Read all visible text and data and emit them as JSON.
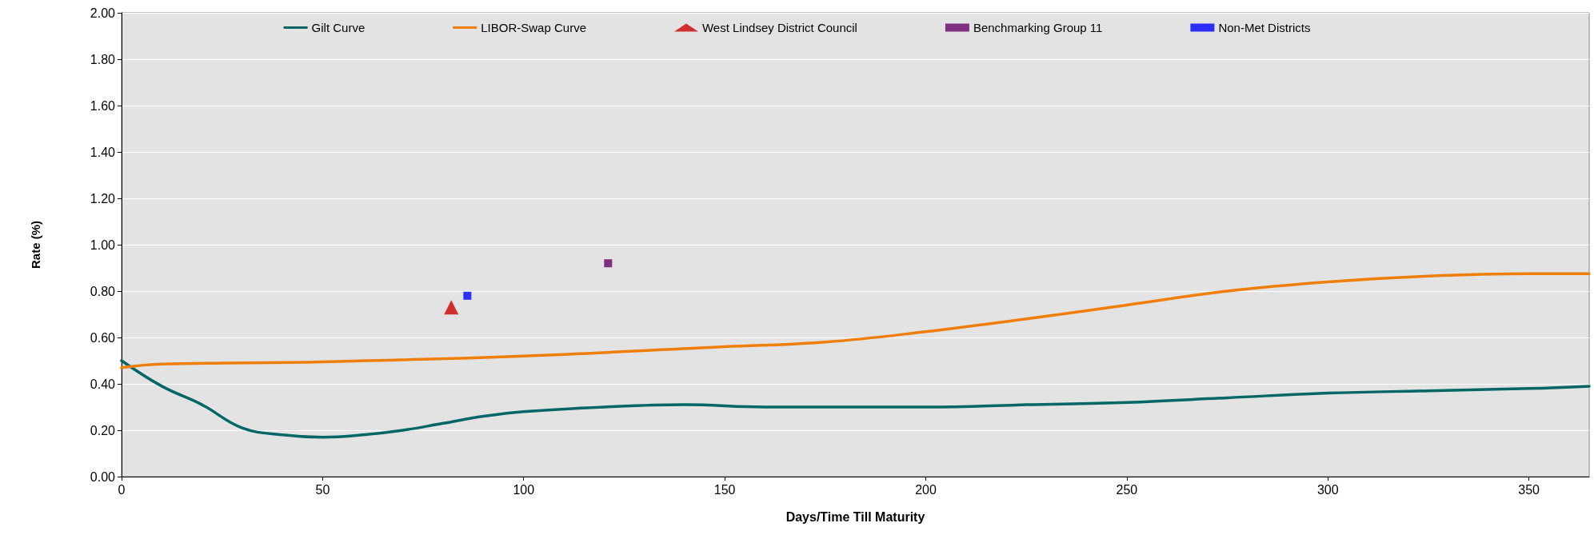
{
  "chart_data": {
    "type": "line",
    "xlabel": "Days/Time Till Maturity",
    "ylabel": "Rate (%)",
    "xlim": [
      0,
      365
    ],
    "xticks": [
      0,
      50,
      100,
      150,
      200,
      250,
      300,
      350
    ],
    "ylim": [
      0,
      2
    ],
    "yticks": [
      {
        "value": 0,
        "label": "0.00"
      },
      {
        "value": 0.2,
        "label": "0.20"
      },
      {
        "value": 0.4,
        "label": "0.40"
      },
      {
        "value": 0.6,
        "label": "0.60"
      },
      {
        "value": 0.8,
        "label": "0.80"
      },
      {
        "value": 1,
        "label": "1.00"
      },
      {
        "value": 1.2,
        "label": "1.20"
      },
      {
        "value": 1.4,
        "label": "1.40"
      },
      {
        "value": 1.6,
        "label": "1.60"
      },
      {
        "value": 1.8,
        "label": "1.80"
      },
      {
        "value": 2,
        "label": "2.00"
      }
    ],
    "grid": "y",
    "legend": "top",
    "series": [
      {
        "name": "Gilt Curve",
        "marker": "none",
        "color": "#006666",
        "x": [
          0,
          10,
          20,
          30,
          40,
          50,
          60,
          70,
          80,
          90,
          100,
          120,
          140,
          160,
          180,
          200,
          225,
          250,
          275,
          300,
          325,
          350,
          365
        ],
        "values": [
          0.5,
          0.39,
          0.31,
          0.21,
          0.18,
          0.17,
          0.18,
          0.2,
          0.23,
          0.26,
          0.28,
          0.3,
          0.31,
          0.3,
          0.3,
          0.3,
          0.31,
          0.32,
          0.34,
          0.36,
          0.37,
          0.38,
          0.39
        ]
      },
      {
        "name": "LIBOR-Swap Curve",
        "marker": "none",
        "color": "#f07f09",
        "x": [
          0,
          10,
          50,
          100,
          150,
          175,
          200,
          225,
          250,
          275,
          300,
          325,
          350,
          365
        ],
        "values": [
          0.47,
          0.485,
          0.495,
          0.52,
          0.56,
          0.58,
          0.625,
          0.68,
          0.74,
          0.8,
          0.84,
          0.865,
          0.875,
          0.875
        ]
      },
      {
        "name": "West Lindsey District Council",
        "type": "scatter",
        "marker": "triangle",
        "color": "#cc0000",
        "x": [
          82
        ],
        "values": [
          0.73
        ]
      },
      {
        "name": "Benchmarking Group 11",
        "type": "scatter",
        "marker": "square",
        "color": "#660066",
        "x": [
          121
        ],
        "values": [
          0.92
        ]
      },
      {
        "name": "Non-Met Districts",
        "type": "scatter",
        "marker": "square",
        "color": "#0000ff",
        "x": [
          86
        ],
        "values": [
          0.78
        ]
      }
    ]
  }
}
